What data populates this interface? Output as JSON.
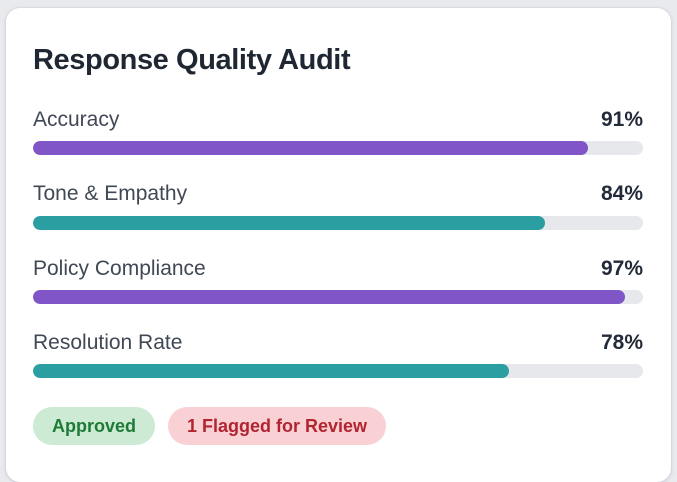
{
  "card": {
    "title": "Response Quality Audit"
  },
  "metrics": [
    {
      "label": "Accuracy",
      "value": 91,
      "display": "91%",
      "color": "purple"
    },
    {
      "label": "Tone & Empathy",
      "value": 84,
      "display": "84%",
      "color": "teal"
    },
    {
      "label": "Policy Compliance",
      "value": 97,
      "display": "97%",
      "color": "purple"
    },
    {
      "label": "Resolution Rate",
      "value": 78,
      "display": "78%",
      "color": "teal"
    }
  ],
  "badges": [
    {
      "label": "Approved",
      "type": "success",
      "bg": "#cdead4",
      "text_color": "#1e7b35"
    },
    {
      "label": "1 Flagged for Review",
      "type": "danger",
      "bg": "#f9d1d4",
      "text_color": "#b2242f"
    }
  ],
  "colors": {
    "purple": "#7f55c8",
    "teal": "#2b9ea2",
    "track": "#e7e8ec",
    "title": "#1f2733",
    "label": "#414855",
    "value": "#232b38",
    "card_bg": "#ffffff",
    "page_bg": "#e9eaee"
  }
}
